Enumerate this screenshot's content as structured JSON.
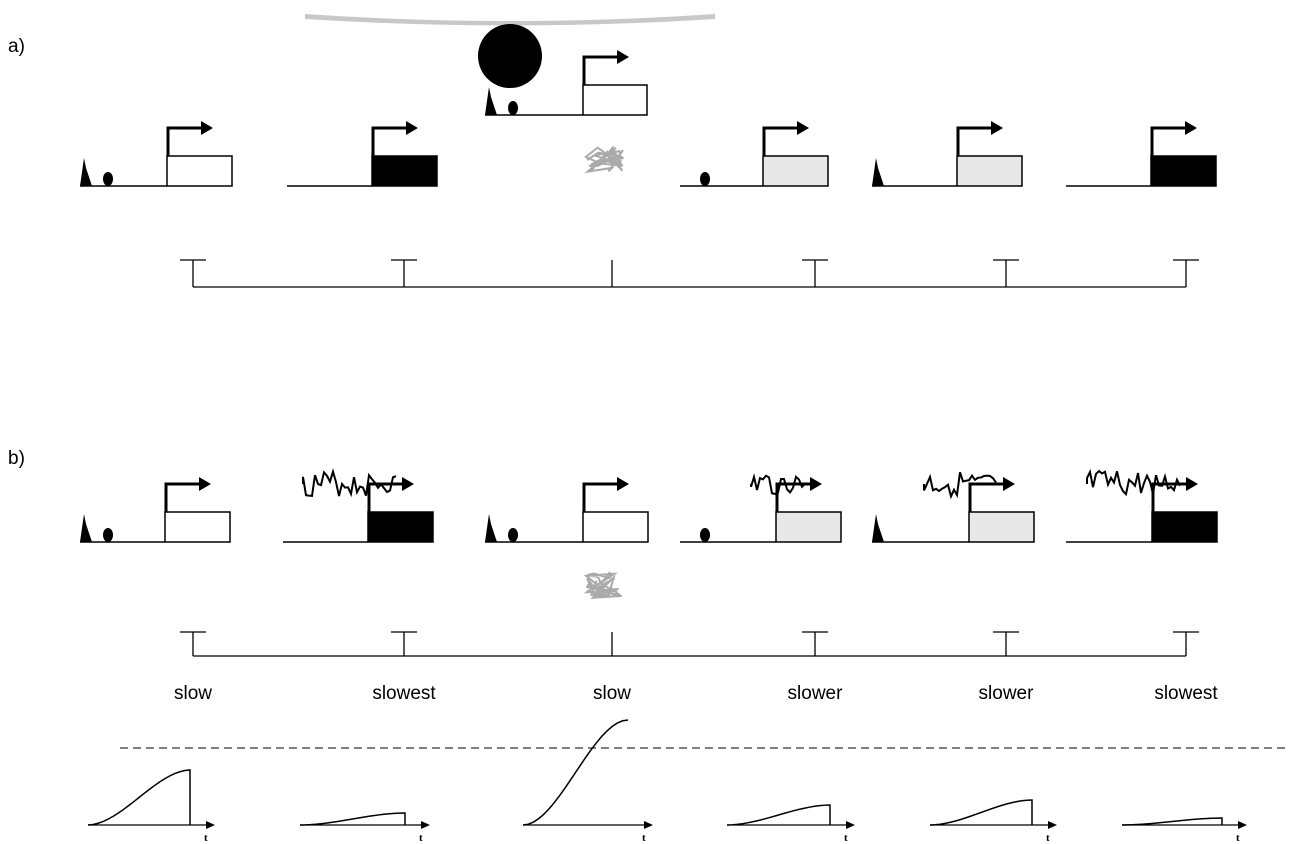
{
  "panel_a": {
    "label": "a)"
  },
  "panel_b": {
    "label": "b)",
    "speeds": [
      "slow",
      "slowest",
      "slow",
      "slower",
      "slower",
      "slowest"
    ]
  },
  "curves": [
    {
      "axis_label": "t"
    },
    {
      "axis_label": "t"
    },
    {
      "axis_label": "t"
    },
    {
      "axis_label": "t"
    },
    {
      "axis_label": "t"
    },
    {
      "axis_label": "t"
    }
  ]
}
